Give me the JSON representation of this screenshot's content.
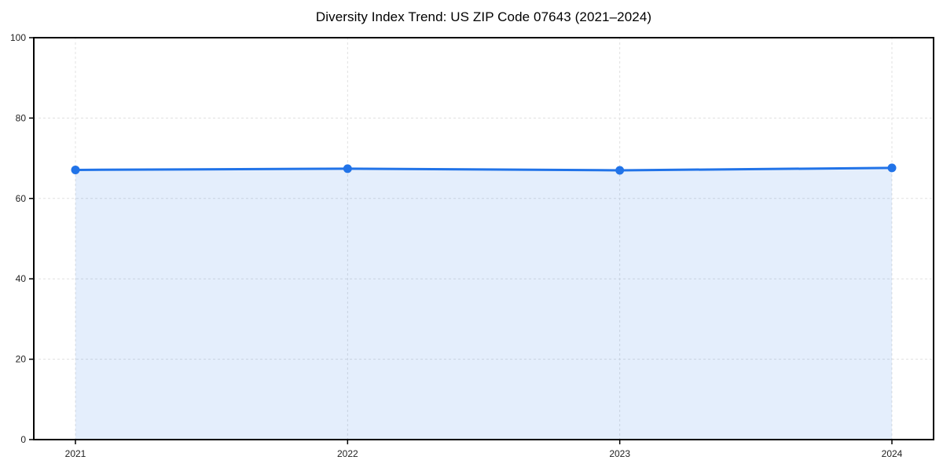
{
  "chart_data": {
    "type": "area",
    "title": "Diversity Index Trend: US ZIP Code 07643 (2021–2024)",
    "categories": [
      "2021",
      "2022",
      "2023",
      "2024"
    ],
    "series": [
      {
        "name": "Diversity Index",
        "values": [
          67.1,
          67.4,
          67.0,
          67.6
        ]
      }
    ],
    "xlabel": "",
    "ylabel": "",
    "ylim": [
      0,
      100
    ],
    "yticks": [
      0,
      20,
      40,
      60,
      80,
      100
    ],
    "grid": "dashed",
    "legend": "none",
    "marker": "circle",
    "colors": {
      "line": "#2173e8",
      "marker": "#2173e8",
      "fill": "rgba(33, 115, 232, 0.12)",
      "grid": "#e0e0e0",
      "axis": "#000000",
      "tick_text": "#1f1f1f"
    }
  }
}
